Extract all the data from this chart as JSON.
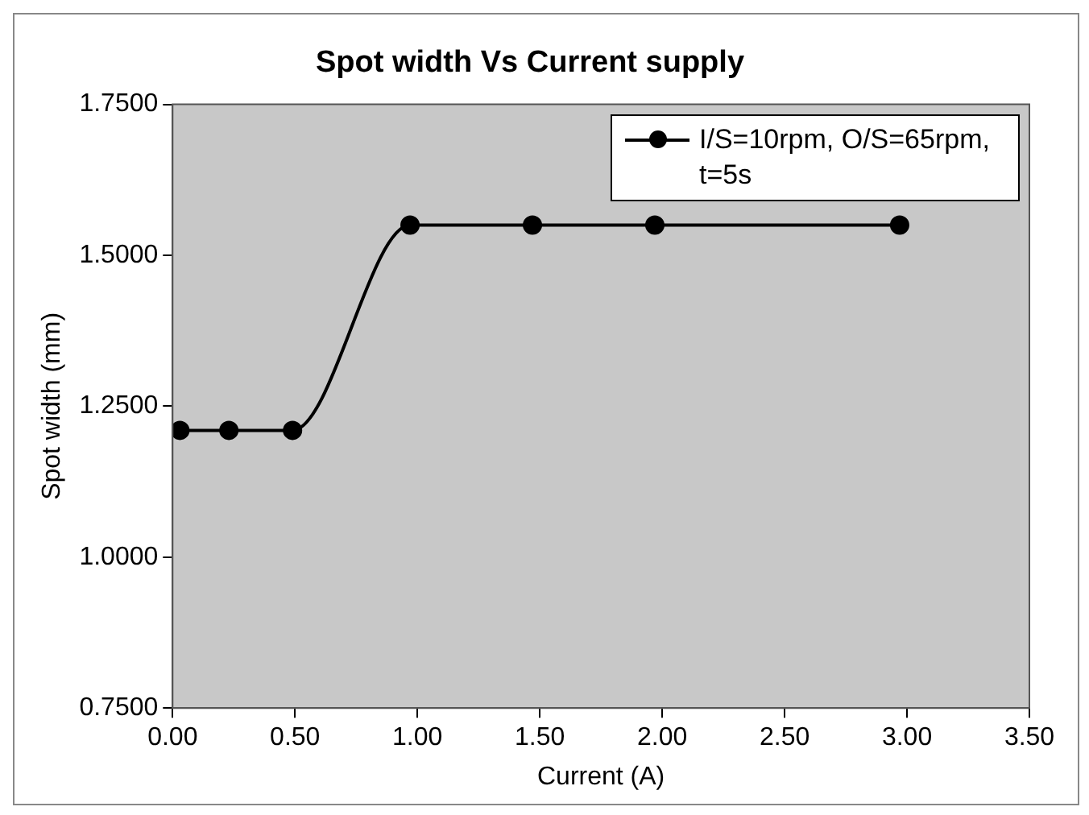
{
  "chart_data": {
    "type": "line",
    "title": "Spot width Vs Current supply",
    "xlabel": "Current (A)",
    "ylabel": "Spot width (mm)",
    "x": [
      0.03,
      0.23,
      0.49,
      0.97,
      1.47,
      1.97,
      2.97
    ],
    "series": [
      {
        "name": "I/S=10rpm, O/S=65rpm, t=5s",
        "color": "#000000",
        "values": [
          1.21,
          1.21,
          1.21,
          1.55,
          1.55,
          1.55,
          1.55
        ]
      }
    ],
    "xlim": [
      0,
      3.5
    ],
    "xticks": [
      {
        "value": 0,
        "label": "0.00"
      },
      {
        "value": 0.5,
        "label": "0.50"
      },
      {
        "value": 1,
        "label": "1.00"
      },
      {
        "value": 1.5,
        "label": "1.50"
      },
      {
        "value": 2,
        "label": "2.00"
      },
      {
        "value": 2.5,
        "label": "2.50"
      },
      {
        "value": 3,
        "label": "3.00"
      },
      {
        "value": 3.5,
        "label": "3.50"
      }
    ],
    "ylim": [
      0.75,
      1.75
    ],
    "yticks": [
      {
        "value": 0.75,
        "label": "0.7500"
      },
      {
        "value": 1,
        "label": "1.0000"
      },
      {
        "value": 1.25,
        "label": "1.2500"
      },
      {
        "value": 1.5,
        "label": "1.5000"
      },
      {
        "value": 1.75,
        "label": "1.7500"
      }
    ],
    "grid": false,
    "legend": "top right",
    "marker": "circle",
    "line_style": "solid"
  }
}
